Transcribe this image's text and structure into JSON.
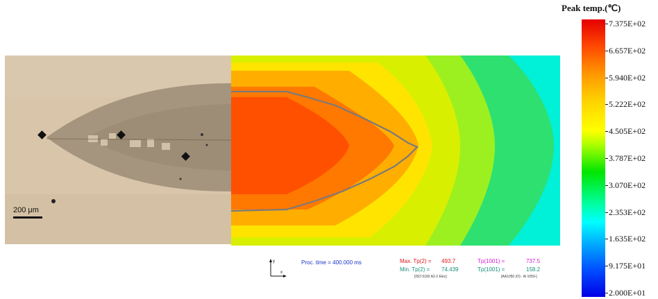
{
  "micrograph": {
    "scale_bar_label": "200 μm"
  },
  "simulation": {
    "axes": {
      "y_label": "y",
      "x_label": "x"
    },
    "proc_time": "Proc. time = 400.000 ms",
    "max_tp2_label": "Max. Tp(2) =",
    "max_tp2_value": "493.7",
    "tp1001_max_label": "Tp(1001) =",
    "tp1001_max_value": "737.5",
    "min_tp2_label": "Min. Tp(2) =",
    "min_tp2_value": "74.439",
    "tp1001_min_label": "Tp(1001) =",
    "tp1001_min_value": "158.2",
    "material_left": "[ISO 5182 A2-2 Elec]",
    "material_right": "[AA1050 (O) : Al 1050-]"
  },
  "colorbar": {
    "title": "Peak temp.(℃)",
    "labels": [
      "7.375E+02",
      "6.657E+02",
      "5.940E+02",
      "5.222E+02",
      "4.505E+02",
      "3.787E+02",
      "3.070E+02",
      "2.353E+02",
      "1.635E+02",
      "9.175E+01",
      "2.000E+01"
    ]
  },
  "colors": {
    "max_text": "#e3151a",
    "magenta_text": "#d21ad6",
    "min_text": "#16907a",
    "time_text": "#1a33c9"
  }
}
